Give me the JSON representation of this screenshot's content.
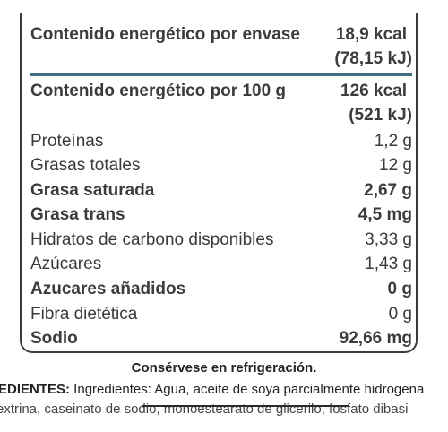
{
  "label": {
    "energy_per_pack": {
      "name": "Contenido energético por envase",
      "kcal": "18,9 kcal",
      "kj": "(78,15 kJ)"
    },
    "energy_per_100g": {
      "name": "Contenido energético por 100 g",
      "kcal": "126 kcal",
      "kj": "(521 kJ)"
    },
    "nutrients": [
      {
        "name": "Proteínas",
        "value": "1,2 g"
      },
      {
        "name": "Grasas totales",
        "value": "12 g"
      },
      {
        "name": "Grasa saturada",
        "value": "2,67 g"
      },
      {
        "name": "Grasa trans",
        "value": "4,5 mg"
      },
      {
        "name": "Hidratos de carbono disponibles",
        "value": "3,33 g"
      },
      {
        "name": "Azúcares",
        "value": "1,43 g"
      },
      {
        "name": "Azucares añadidos",
        "value": "0 g"
      },
      {
        "name": "Fibra dietética",
        "value": "0 g"
      },
      {
        "name": "Sodio",
        "value": "92,66 mg"
      }
    ]
  },
  "storage_note": "Consérvese en refrigeración.",
  "ingredients": {
    "heading": "EDIENTES:",
    "line1": " Ingredientes: Agua, aceite de soya parcialmente hidrogena",
    "line2": "extrina, caseinato de sodio, monoestearato de glicerilo, fosfato dibasi"
  }
}
